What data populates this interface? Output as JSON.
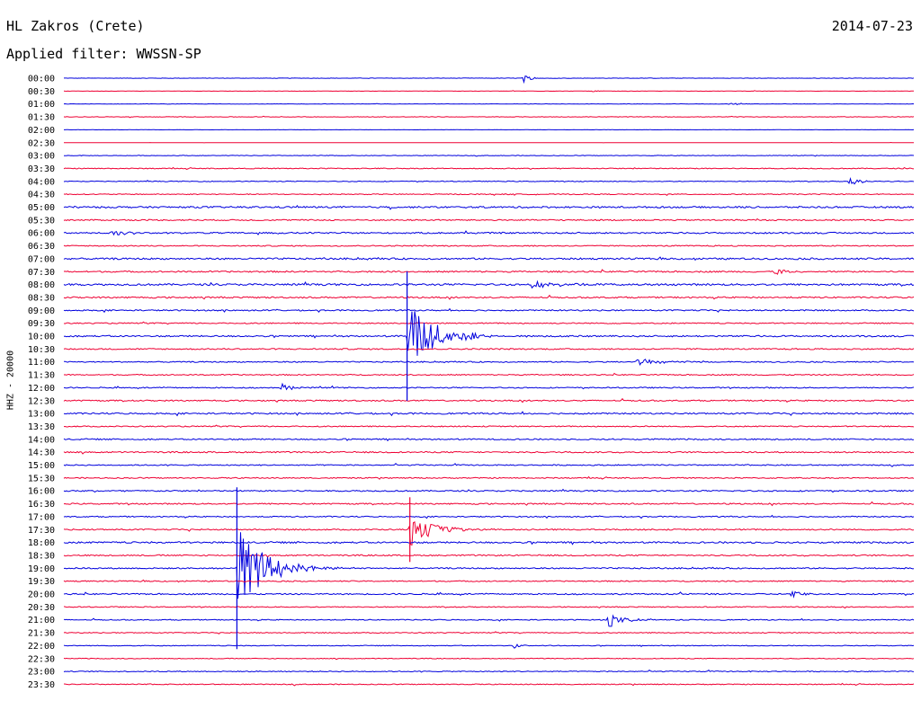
{
  "header": {
    "station": "HL Zakros (Crete)",
    "date": "2014-07-23",
    "filter_label": "Applied filter: WWSSN-SP"
  },
  "colors": {
    "even": "#0000dd",
    "odd": "#ee0033"
  },
  "chart_data": {
    "type": "line",
    "title": "HL Zakros (Crete)",
    "ylabel": "HHZ - 20000",
    "row_labels": [
      "00:00",
      "00:30",
      "01:00",
      "01:30",
      "02:00",
      "02:30",
      "03:00",
      "03:30",
      "04:00",
      "04:30",
      "05:00",
      "05:30",
      "06:00",
      "06:30",
      "07:00",
      "07:30",
      "08:00",
      "08:30",
      "09:00",
      "09:30",
      "10:00",
      "10:30",
      "11:00",
      "11:30",
      "12:00",
      "12:30",
      "13:00",
      "13:30",
      "14:00",
      "14:30",
      "15:00",
      "15:30",
      "16:00",
      "16:30",
      "17:00",
      "17:30",
      "18:00",
      "18:30",
      "19:00",
      "19:30",
      "20:00",
      "20:30",
      "21:00",
      "21:30",
      "22:00",
      "22:30",
      "23:00",
      "23:30"
    ],
    "trace_minutes": 30,
    "noise_level": [
      0.2,
      0.2,
      0.2,
      0.3,
      0.1,
      0.1,
      0.3,
      0.5,
      0.4,
      0.5,
      0.9,
      0.7,
      0.8,
      0.6,
      0.9,
      0.8,
      1.0,
      0.8,
      0.7,
      0.6,
      0.8,
      0.7,
      0.6,
      0.6,
      0.6,
      0.7,
      0.8,
      0.6,
      0.7,
      0.7,
      0.6,
      0.6,
      0.7,
      0.7,
      0.6,
      0.7,
      0.9,
      0.7,
      0.7,
      0.6,
      0.7,
      0.5,
      0.5,
      0.5,
      0.4,
      0.4,
      0.5,
      0.5
    ],
    "events": [
      {
        "row": 0,
        "minute": 16.2,
        "amp": 5,
        "dur": 0.5
      },
      {
        "row": 1,
        "minute": 18.6,
        "amp": 2.5,
        "dur": 0.3
      },
      {
        "row": 2,
        "minute": 23.5,
        "amp": 2,
        "dur": 0.8
      },
      {
        "row": 8,
        "minute": 27.7,
        "amp": 7,
        "dur": 0.6
      },
      {
        "row": 12,
        "minute": 1.7,
        "amp": 5,
        "dur": 1.0
      },
      {
        "row": 15,
        "minute": 25.1,
        "amp": 6,
        "dur": 0.5
      },
      {
        "row": 16,
        "minute": 16.5,
        "amp": 4,
        "dur": 1.5
      },
      {
        "row": 20,
        "minute": 12.1,
        "amp": 40,
        "dur": 2.0
      },
      {
        "row": 22,
        "minute": 20.2,
        "amp": 5,
        "dur": 1.5
      },
      {
        "row": 24,
        "minute": 7.7,
        "amp": 5,
        "dur": 0.6
      },
      {
        "row": 35,
        "minute": 12.2,
        "amp": 20,
        "dur": 1.5
      },
      {
        "row": 38,
        "minute": 6.1,
        "amp": 50,
        "dur": 2.0
      },
      {
        "row": 40,
        "minute": 25.6,
        "amp": 6,
        "dur": 0.6
      },
      {
        "row": 42,
        "minute": 19.2,
        "amp": 9,
        "dur": 1.0
      },
      {
        "row": 44,
        "minute": 15.8,
        "amp": 4,
        "dur": 0.6
      }
    ]
  }
}
